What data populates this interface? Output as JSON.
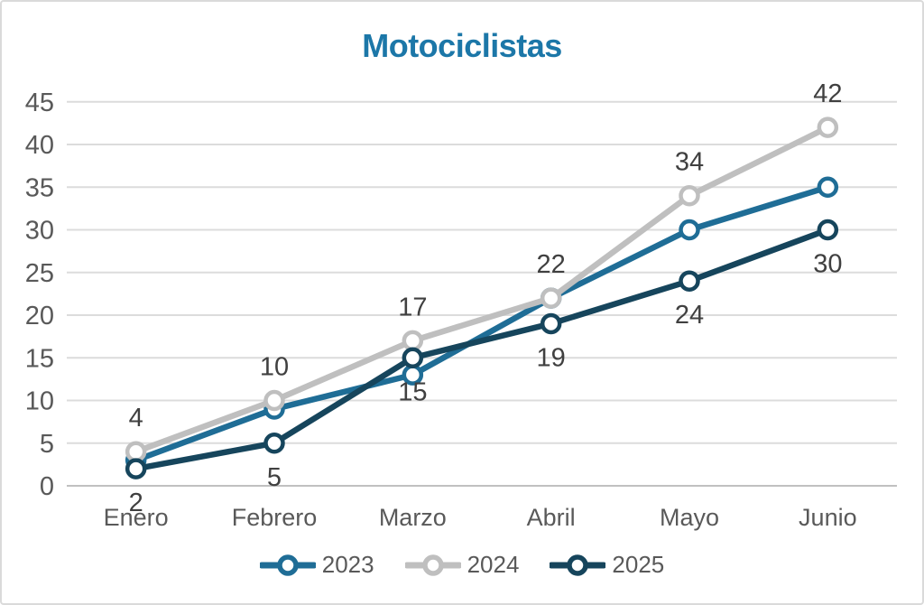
{
  "chart_data": {
    "type": "line",
    "title": "Motociclistas",
    "categories": [
      "Enero",
      "Febrero",
      "Marzo",
      "Abril",
      "Mayo",
      "Junio"
    ],
    "series": [
      {
        "name": "2023",
        "color": "#1f6d96",
        "values": [
          3,
          9,
          13,
          22,
          30,
          35
        ],
        "data_labels": "none"
      },
      {
        "name": "2024",
        "color": "#bfbfbf",
        "values": [
          4,
          10,
          17,
          22,
          34,
          42
        ],
        "data_labels": "above"
      },
      {
        "name": "2025",
        "color": "#16455c",
        "values": [
          2,
          5,
          15,
          19,
          24,
          30
        ],
        "data_labels": "below"
      }
    ],
    "xlabel": "",
    "ylabel": "",
    "ylim": [
      0,
      45
    ],
    "ytick_step": 5,
    "yticks": [
      0,
      5,
      10,
      15,
      20,
      25,
      30,
      35,
      40,
      45
    ],
    "grid": true,
    "legend_position": "bottom",
    "marker": "circle",
    "style": {
      "title_color": "#1c77a8",
      "grid_color": "#dcdcdc",
      "axis_line_color": "#c0c0c0",
      "tick_label_color": "#595959",
      "category_label_color": "#595959",
      "data_label_color": "#404040",
      "legend_text_color": "#595959",
      "marker_fill": "#ffffff",
      "background": "#ffffff"
    }
  }
}
